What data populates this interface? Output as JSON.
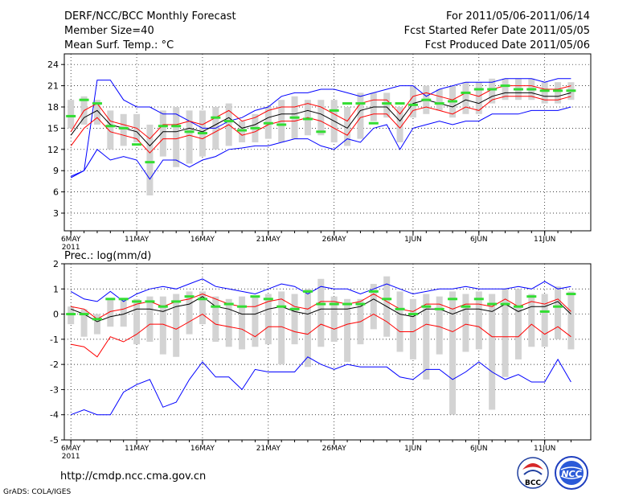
{
  "header": {
    "title": "DERF/NCC/BCC Monthly Forecast",
    "member_size": "Member Size=40",
    "top_variable": "Mean Surf. Temp.: °C",
    "period": "For 2011/05/06-2011/06/14",
    "started": "Fcst Started Refer Date 2011/05/05",
    "produced": "Fcst Produced Date 2011/05/06"
  },
  "footer": {
    "url": "http://cmdp.ncc.cma.gov.cn",
    "grads": "GrADS: COLA/IGES",
    "logo_bcc": "BCC",
    "logo_ncc": "NCC"
  },
  "colors": {
    "envelope": "#0000ff",
    "spread": "#ff0000",
    "mean": "#000000",
    "median": "#33dd33",
    "box": "#d3d3d3"
  },
  "chart_data": [
    {
      "type": "line",
      "title": "Mean Surf. Temp.: °C",
      "ylim": [
        0.5,
        25.5
      ],
      "yticks": [
        3,
        6,
        9,
        12,
        15,
        18,
        21,
        24
      ],
      "xrange": [
        -0.5,
        39.5
      ],
      "xticks": [
        {
          "d": 0,
          "label": "6MAY"
        },
        {
          "d": 5,
          "label": "11MAY"
        },
        {
          "d": 10,
          "label": "16MAY"
        },
        {
          "d": 15,
          "label": "21MAY"
        },
        {
          "d": 20,
          "label": "26MAY"
        },
        {
          "d": 26,
          "label": "1JUN"
        },
        {
          "d": 31,
          "label": "6JUN"
        },
        {
          "d": 36,
          "label": "11JUN"
        }
      ],
      "year_label": "2011",
      "days": 39,
      "series": [
        {
          "name": "max",
          "values": [
            8,
            9,
            21.8,
            21.8,
            19,
            18,
            18,
            17,
            17,
            16,
            15,
            15,
            16,
            16.5,
            17.5,
            18,
            19.5,
            20,
            20,
            20.5,
            20.5,
            20,
            19.5,
            20,
            20.5,
            21,
            21,
            19.5,
            20.5,
            21,
            21.5,
            21.5,
            21.5,
            22,
            22,
            22,
            21.5,
            22,
            22
          ]
        },
        {
          "name": "upper",
          "values": [
            14.5,
            17.5,
            18.5,
            16,
            15.5,
            15,
            13.5,
            15.5,
            15.5,
            16,
            15.5,
            16.5,
            17.5,
            16,
            16.5,
            17.5,
            18,
            18,
            18.5,
            18,
            17,
            16,
            18.5,
            19,
            19,
            17,
            19.5,
            20,
            19.5,
            19,
            20,
            19.5,
            20.5,
            21,
            21,
            21,
            20.5,
            20.5,
            21
          ]
        },
        {
          "name": "mean",
          "values": [
            14,
            16.5,
            17.5,
            15.5,
            15,
            14.5,
            12.5,
            14.5,
            14.5,
            15,
            14.5,
            15.5,
            16.5,
            15,
            15.5,
            16.5,
            17,
            17,
            17.5,
            17,
            16,
            15,
            17.5,
            18,
            18,
            16,
            18.5,
            19,
            18.5,
            18,
            19,
            18.5,
            19.5,
            20,
            20,
            20,
            19.5,
            19.5,
            20
          ]
        },
        {
          "name": "lower",
          "values": [
            12.5,
            15,
            16.5,
            14.5,
            14,
            13.5,
            11.5,
            13.5,
            13.5,
            14,
            13.5,
            14.5,
            15.5,
            14,
            14.5,
            15.5,
            16,
            16,
            16.5,
            16,
            15,
            14,
            16.5,
            17,
            17,
            15,
            17.5,
            18,
            17.5,
            17,
            18,
            17.5,
            19,
            19.5,
            19.5,
            19.5,
            19,
            19,
            19.5
          ]
        },
        {
          "name": "min",
          "values": [
            8.2,
            9,
            12,
            10.5,
            11,
            10.5,
            7.8,
            10.5,
            10.5,
            9.5,
            10.5,
            11,
            12,
            12.2,
            12.5,
            12.5,
            13,
            13.5,
            13.5,
            12.5,
            12,
            13.5,
            13,
            15,
            15.5,
            12,
            15,
            15.5,
            16,
            15.5,
            16,
            16,
            17,
            17,
            17,
            17.5,
            17.5,
            17.5,
            18
          ]
        }
      ],
      "box_low": [
        15,
        15.5,
        15.5,
        12,
        12.5,
        13,
        5.5,
        11,
        9.5,
        10,
        11,
        12,
        12.5,
        13,
        13,
        13.5,
        13,
        13.5,
        14,
        14,
        13,
        12.5,
        13.5,
        16,
        16.5,
        13,
        16.5,
        17,
        17.5,
        16.5,
        17,
        17,
        18.5,
        19,
        19,
        19,
        18.5,
        18.5,
        19
      ],
      "box_high": [
        19,
        19.5,
        19,
        17.5,
        17,
        17,
        15.5,
        17.5,
        18,
        17.5,
        17.5,
        18,
        18.5,
        16,
        17,
        18,
        19,
        19.5,
        19,
        19,
        19,
        18,
        20,
        20,
        20,
        18,
        21,
        21,
        20.5,
        21,
        21.5,
        21.5,
        22,
        22,
        22,
        22,
        21.5,
        21.5,
        21.5
      ],
      "median": [
        16.7,
        19,
        18.5,
        15.3,
        15,
        12.7,
        10.2,
        15.3,
        15.3,
        14.5,
        14.3,
        16.5,
        16,
        14.7,
        15,
        15.7,
        15.5,
        16.5,
        16.3,
        14.5,
        17.5,
        18.5,
        18.5,
        15.7,
        18.5,
        18.5,
        18.3,
        19,
        18.5,
        18.8,
        20,
        20.5,
        20.5,
        21,
        20.5,
        20.5,
        20.3,
        20.3,
        20.3
      ]
    },
    {
      "type": "line",
      "title": "Prec.: log(mm/d)",
      "ylim": [
        -5,
        2
      ],
      "yticks": [
        -5,
        -4,
        -3,
        -2,
        -1,
        0,
        1,
        2
      ],
      "xrange": [
        -0.5,
        39.5
      ],
      "xticks": [
        {
          "d": 0,
          "label": "6MAY"
        },
        {
          "d": 5,
          "label": "11MAY"
        },
        {
          "d": 10,
          "label": "16MAY"
        },
        {
          "d": 15,
          "label": "21MAY"
        },
        {
          "d": 20,
          "label": "26MAY"
        },
        {
          "d": 26,
          "label": "1JUN"
        },
        {
          "d": 31,
          "label": "6JUN"
        },
        {
          "d": 36,
          "label": "11JUN"
        }
      ],
      "year_label": "2011",
      "days": 39,
      "series": [
        {
          "name": "max",
          "values": [
            0.9,
            0.6,
            0.5,
            0.9,
            0.5,
            0.8,
            1.0,
            1.1,
            1.0,
            1.2,
            1.4,
            1.1,
            1.0,
            0.9,
            0.8,
            1.0,
            1.2,
            1.1,
            0.8,
            1.1,
            1.0,
            1.0,
            0.8,
            1.0,
            1.2,
            1.0,
            0.8,
            0.9,
            1.0,
            1.0,
            1.1,
            1.0,
            1.0,
            1.0,
            1.1,
            1.0,
            1.3,
            1.0,
            1.1
          ]
        },
        {
          "name": "upper",
          "values": [
            0.3,
            0.2,
            -0.2,
            0.1,
            0.2,
            0.4,
            0.5,
            0.3,
            0.5,
            0.6,
            0.8,
            0.6,
            0.4,
            0.3,
            0.3,
            0.5,
            0.6,
            0.3,
            0.2,
            0.5,
            0.5,
            0.4,
            0.5,
            0.8,
            0.5,
            0.2,
            0.1,
            0.4,
            0.4,
            0.2,
            0.4,
            0.4,
            0.3,
            0.6,
            0.3,
            0.5,
            0.4,
            0.6,
            0.1
          ]
        },
        {
          "name": "mean",
          "values": [
            0.2,
            0.0,
            -0.3,
            -0.1,
            0.0,
            0.2,
            0.2,
            0.1,
            0.3,
            0.4,
            0.7,
            0.3,
            0.2,
            0.0,
            0.0,
            0.2,
            0.3,
            0.1,
            0.0,
            0.2,
            0.2,
            0.2,
            0.3,
            0.6,
            0.3,
            0.0,
            -0.1,
            0.2,
            0.2,
            0.0,
            0.2,
            0.2,
            0.1,
            0.4,
            0.1,
            0.3,
            0.3,
            0.5,
            0.0
          ]
        },
        {
          "name": "lower",
          "values": [
            -1.2,
            -1.3,
            -1.7,
            -0.9,
            -1.1,
            -0.8,
            -0.4,
            -0.4,
            -0.6,
            -0.3,
            0.0,
            -0.4,
            -0.5,
            -0.6,
            -0.9,
            -0.5,
            -0.5,
            -0.7,
            -0.8,
            -0.4,
            -0.6,
            -0.4,
            -0.3,
            0.0,
            -0.3,
            -0.7,
            -0.7,
            -0.4,
            -0.5,
            -0.7,
            -0.4,
            -0.5,
            -0.9,
            -0.9,
            -0.9,
            -0.4,
            -0.8,
            -0.5,
            -0.9
          ]
        },
        {
          "name": "min",
          "values": [
            -4.0,
            -3.8,
            -4.0,
            -4.0,
            -3.1,
            -2.8,
            -2.6,
            -3.7,
            -3.5,
            -2.6,
            -1.9,
            -2.5,
            -2.5,
            -3.0,
            -2.2,
            -2.3,
            -2.3,
            -2.3,
            -1.7,
            -2.0,
            -2.2,
            -2.0,
            -2.1,
            -2.1,
            -2.1,
            -2.5,
            -2.6,
            -2.2,
            -2.2,
            -2.6,
            -2.3,
            -1.9,
            -2.3,
            -2.6,
            -2.4,
            -2.7,
            -2.7,
            -1.8,
            -2.7
          ]
        },
        {
          "name": "box_low",
          "values": [
            -0.4,
            -0.9,
            -0.8,
            -0.5,
            -0.5,
            -1.2,
            -1.1,
            -1.6,
            -1.7,
            -0.8,
            -0.4,
            -1.1,
            -1.3,
            -1.4,
            -1.3,
            -1.2,
            -2.0,
            -1.2,
            -2.1,
            -1.3,
            -1.1,
            -1.9,
            -1.2,
            -0.6,
            -0.9,
            -1.5,
            -1.8,
            -2.6,
            -1.6,
            -4.0,
            -1.5,
            -1.4,
            -3.8,
            -2.5,
            -1.8,
            -1.3,
            -1.3,
            -1.0,
            -1.4
          ]
        },
        {
          "name": "box_high",
          "values": [
            0.3,
            0.2,
            0.0,
            0.6,
            0.6,
            0.6,
            0.7,
            0.7,
            0.8,
            0.9,
            0.9,
            0.7,
            0.6,
            0.7,
            0.7,
            0.8,
            0.9,
            0.8,
            1.0,
            1.4,
            0.7,
            0.6,
            0.6,
            1.2,
            1.5,
            0.9,
            0.6,
            0.8,
            0.7,
            0.9,
            0.8,
            0.9,
            0.8,
            1.0,
            1.0,
            0.8,
            0.8,
            1.1,
            0.9
          ]
        },
        {
          "name": "median",
          "values": [
            0.0,
            0.0,
            -0.2,
            0.6,
            0.6,
            0.5,
            0.5,
            0.3,
            0.5,
            0.7,
            0.6,
            0.3,
            0.4,
            0.3,
            0.7,
            0.6,
            0.3,
            0.2,
            0.9,
            0.4,
            0.4,
            0.4,
            0.4,
            0.9,
            0.6,
            0.2,
            0.0,
            0.3,
            0.2,
            0.6,
            0.3,
            0.6,
            0.4,
            0.4,
            0.3,
            0.7,
            0.1,
            0.3,
            0.8
          ]
        }
      ]
    }
  ]
}
